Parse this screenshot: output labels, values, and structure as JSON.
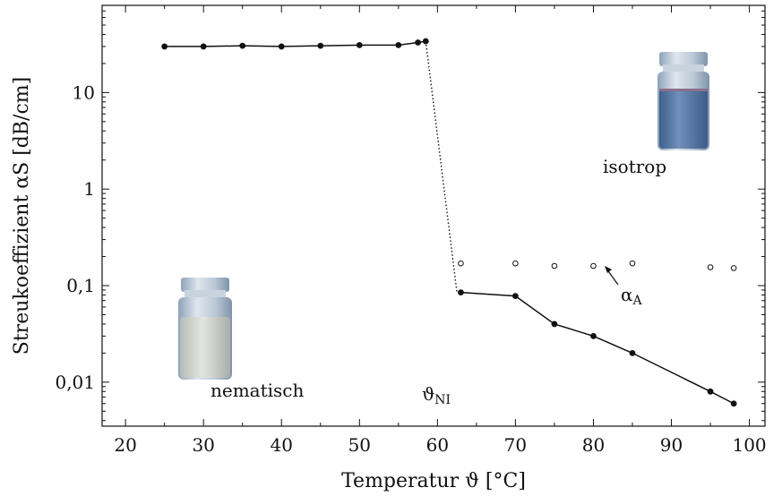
{
  "chart_data": {
    "type": "scatter",
    "title": "",
    "xlabel": "Temperatur ϑ [°C]",
    "ylabel": "Streukoeffizient αS [dB/cm]",
    "xlim": [
      17,
      102
    ],
    "ylim": [
      0.0035,
      80
    ],
    "log_y": true,
    "grid": false,
    "x_ticks": [
      20,
      30,
      40,
      50,
      60,
      70,
      80,
      90,
      100
    ],
    "x_tick_labels": [
      "20",
      "30",
      "40",
      "50",
      "60",
      "70",
      "80",
      "90",
      "100"
    ],
    "y_ticks": [
      0.01,
      0.1,
      1,
      10
    ],
    "y_tick_labels": [
      "0,01",
      "0,1",
      "1",
      "10"
    ],
    "series": [
      {
        "name": "",
        "style": "filled-line",
        "x": [
          25,
          30,
          35,
          40,
          45,
          50,
          55,
          57.5,
          58.5
        ],
        "y": [
          30,
          30,
          30.5,
          30,
          30.5,
          31,
          31,
          33,
          34
        ]
      },
      {
        "name": "",
        "style": "filled-line",
        "x": [
          63,
          70,
          75,
          80,
          85,
          95,
          98
        ],
        "y": [
          0.085,
          0.078,
          0.04,
          0.03,
          0.02,
          0.008,
          0.006
        ]
      },
      {
        "name": "αA",
        "style": "open",
        "x": [
          63,
          70,
          75,
          80,
          85,
          95,
          98
        ],
        "y": [
          0.17,
          0.17,
          0.16,
          0.16,
          0.17,
          0.155,
          0.152
        ]
      }
    ],
    "transition_line": {
      "x": [
        58.5,
        62.5
      ],
      "y": [
        34,
        0.085
      ]
    },
    "annotations": {
      "isotrop": "isotrop",
      "nematisch": "nematisch",
      "theta": "ϑ",
      "theta_sub": "NI",
      "alpha": "α",
      "alpha_sub": "A"
    },
    "colors": {
      "line": "#111111",
      "vial_blue": "#5a7aa3",
      "vial_milk": "#cfd2cc",
      "glass": "#b6c6d6"
    }
  }
}
